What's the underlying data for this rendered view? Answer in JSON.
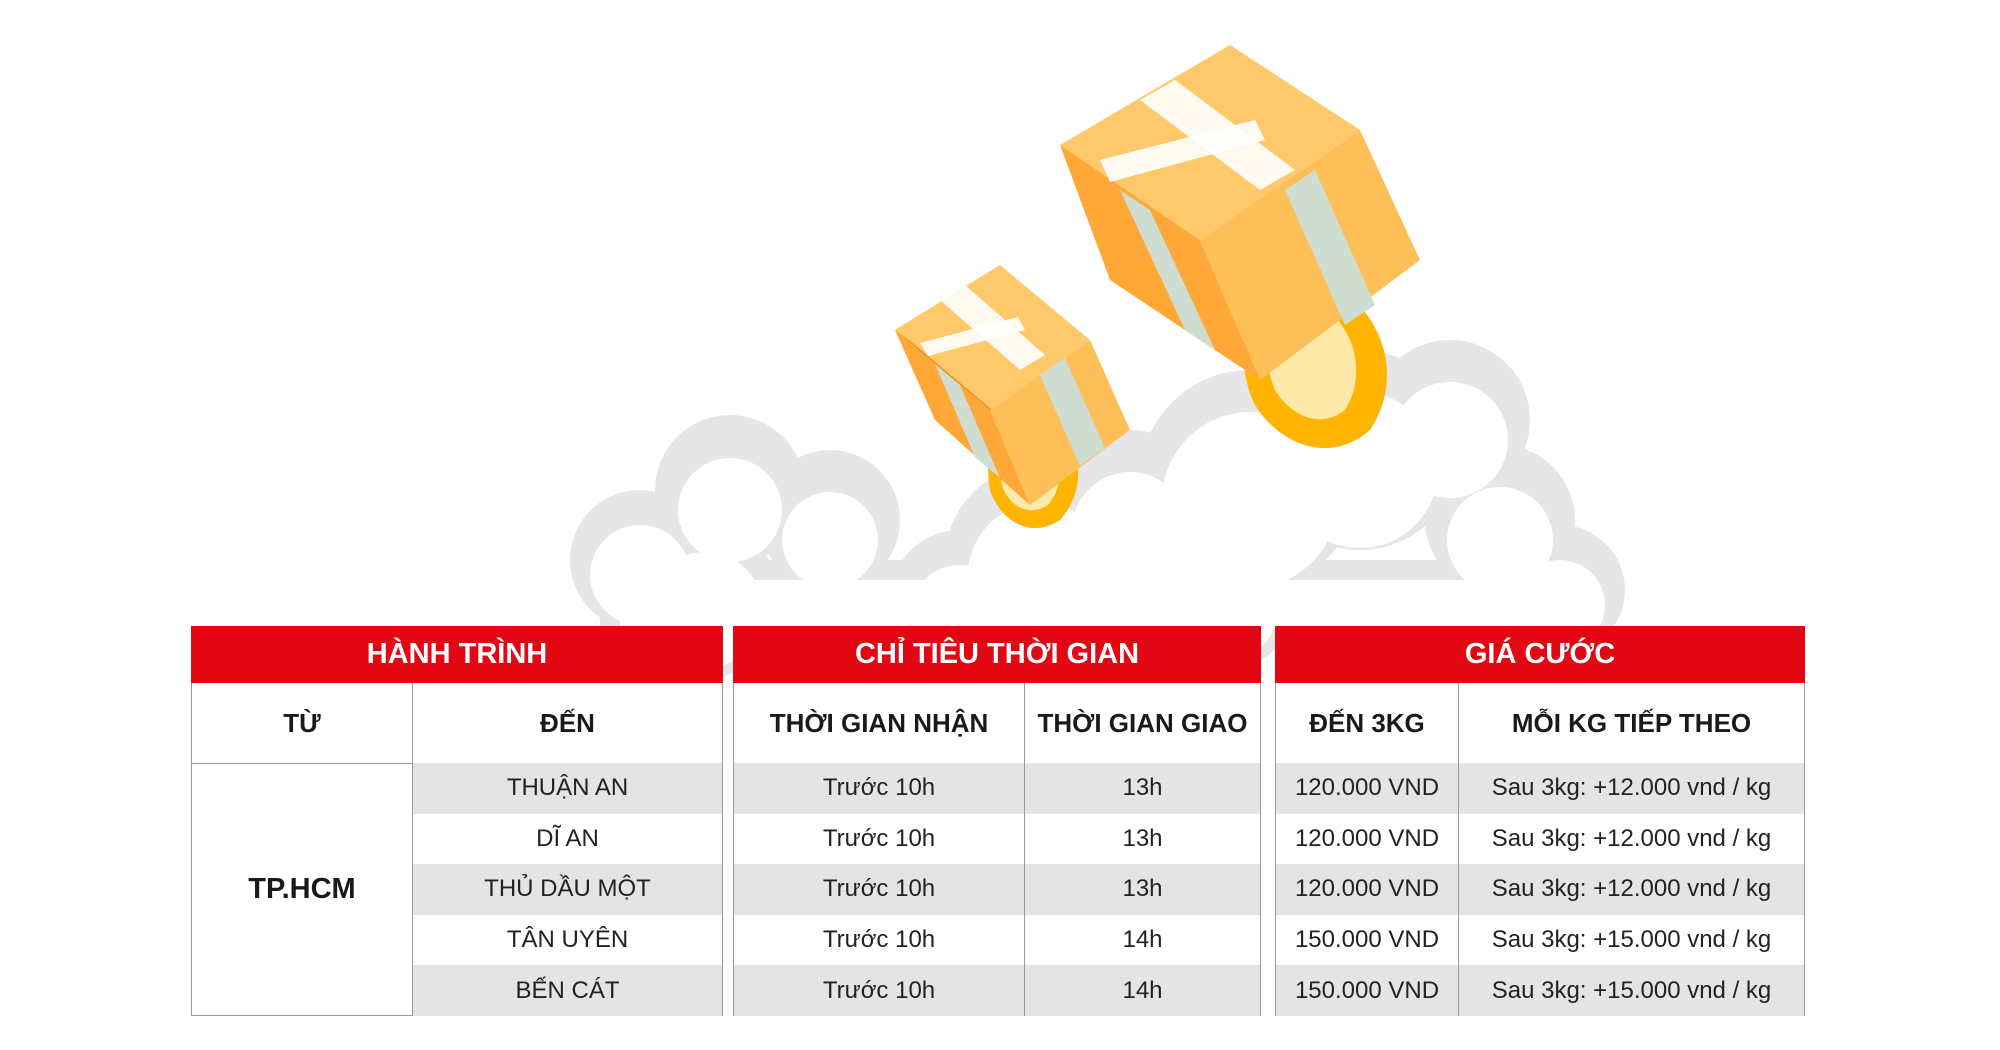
{
  "route": {
    "header": "HÀNH TRÌNH",
    "from_label": "TỪ",
    "to_label": "ĐẾN",
    "origin": "TP.HCM",
    "destinations": [
      "THUẬN AN",
      "DĨ AN",
      "THỦ DẦU MỘT",
      "TÂN UYÊN",
      "BẾN CÁT"
    ]
  },
  "time": {
    "header": "CHỈ TIÊU THỜI GIAN",
    "receive_label": "THỜI GIAN NHẬN",
    "deliver_label": "THỜI GIAN GIAO",
    "receive": [
      "Trước 10h",
      "Trước 10h",
      "Trước 10h",
      "Trước 10h",
      "Trước 10h"
    ],
    "deliver": [
      "13h",
      "13h",
      "13h",
      "14h",
      "14h"
    ]
  },
  "price": {
    "header": "GIÁ CƯỚC",
    "base_label": "ĐẾN 3KG",
    "extra_label": "MỖI KG TIẾP THEO",
    "base": [
      "120.000 VND",
      "120.000 VND",
      "120.000 VND",
      "150.000 VND",
      "150.000 VND"
    ],
    "extra": [
      "Sau 3kg: +12.000 vnd / kg",
      "Sau 3kg: +12.000 vnd / kg",
      "Sau 3kg: +12.000 vnd / kg",
      "Sau 3kg: +15.000 vnd / kg",
      "Sau 3kg: +15.000 vnd / kg"
    ]
  },
  "colors": {
    "header_red": "#e30613",
    "stripe_gray": "#e4e4e4",
    "box_orange": "#ffa838",
    "smoke_gray": "#e6e6e6"
  }
}
